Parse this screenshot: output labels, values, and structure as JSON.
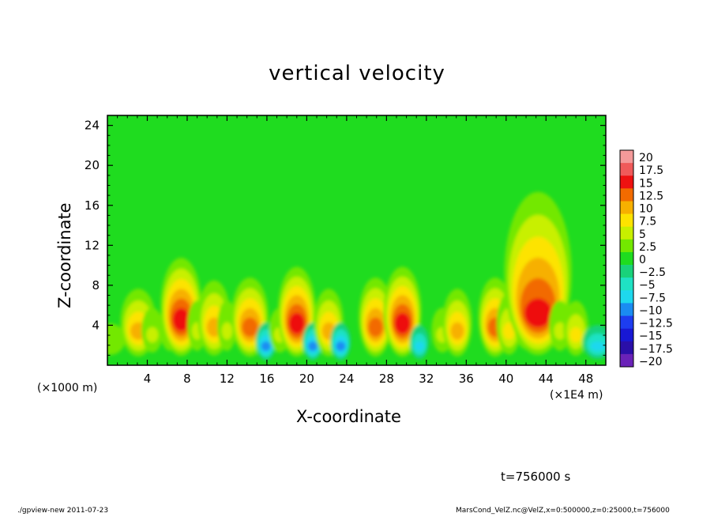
{
  "chart_data": {
    "type": "heatmap",
    "title": "vertical velocity",
    "xlabel": "X-coordinate",
    "ylabel": "Z-coordinate",
    "x_unit_left": "(×1000 m)",
    "x_unit_right": "(×1E4 m)",
    "xlim": [
      0,
      50
    ],
    "ylim": [
      0,
      25
    ],
    "x_ticks": [
      4,
      8,
      12,
      16,
      20,
      24,
      28,
      32,
      36,
      40,
      44,
      48
    ],
    "y_ticks": [
      4,
      8,
      12,
      16,
      20,
      24
    ],
    "background_value": 0,
    "colorbar": {
      "levels": [
        "20",
        "17.5",
        "15",
        "12.5",
        "10",
        "7.5",
        "5",
        "2.5",
        "0",
        "−2.5",
        "−5",
        "−7.5",
        "−10",
        "−12.5",
        "−15",
        "−17.5",
        "−20"
      ],
      "colors": [
        "#f49a9a",
        "#f05a5a",
        "#ee1111",
        "#f26b00",
        "#f7b000",
        "#fde300",
        "#c8f000",
        "#73e800",
        "#1fdc1f",
        "#19d27a",
        "#1fe2c4",
        "#1ed8ee",
        "#1a8cf2",
        "#1d3df0",
        "#1818d4",
        "#2a0fa8",
        "#6a22b8"
      ]
    },
    "features": [
      {
        "x": 0.3,
        "peak": 4.5,
        "top": 6,
        "width": 0.6
      },
      {
        "x": 3.1,
        "peak": 10,
        "top": 9,
        "width": 0.55
      },
      {
        "x": 4.5,
        "peak": 5,
        "top": 8,
        "width": 0.4
      },
      {
        "x": 6.3,
        "peak": 5,
        "top": 9,
        "width": 0.4
      },
      {
        "x": 7.4,
        "peak": 15,
        "top": 12,
        "width": 0.6
      },
      {
        "x": 9.0,
        "peak": 5,
        "top": 9,
        "width": 0.35
      },
      {
        "x": 10.7,
        "peak": 10,
        "top": 10,
        "width": 0.5
      },
      {
        "x": 12.0,
        "peak": 5,
        "top": 9,
        "width": 0.35
      },
      {
        "x": 14.3,
        "peak": 12.5,
        "top": 10,
        "width": 0.55
      },
      {
        "x": 15.9,
        "peak": -10,
        "top": 5,
        "width": 0.3
      },
      {
        "x": 17.3,
        "peak": 5,
        "top": 8,
        "width": 0.4
      },
      {
        "x": 19.0,
        "peak": 15,
        "top": 11,
        "width": 0.55
      },
      {
        "x": 20.6,
        "peak": -10,
        "top": 5,
        "width": 0.3
      },
      {
        "x": 22.2,
        "peak": 10,
        "top": 9,
        "width": 0.45
      },
      {
        "x": 23.4,
        "peak": -10,
        "top": 5,
        "width": 0.3
      },
      {
        "x": 26.9,
        "peak": 12.5,
        "top": 10,
        "width": 0.5
      },
      {
        "x": 29.6,
        "peak": 15,
        "top": 11,
        "width": 0.55
      },
      {
        "x": 31.3,
        "peak": -7.5,
        "top": 5,
        "width": 0.3
      },
      {
        "x": 33.6,
        "peak": 5,
        "top": 8,
        "width": 0.4
      },
      {
        "x": 35.1,
        "peak": 10,
        "top": 9,
        "width": 0.45
      },
      {
        "x": 38.9,
        "peak": 12.5,
        "top": 10,
        "width": 0.5
      },
      {
        "x": 40.3,
        "peak": 7.5,
        "top": 9,
        "width": 0.4
      },
      {
        "x": 42.0,
        "peak": 5,
        "top": 10,
        "width": 0.45
      },
      {
        "x": 43.2,
        "peak": 15,
        "top": 20,
        "width": 1.0
      },
      {
        "x": 45.4,
        "peak": 5,
        "top": 9,
        "width": 0.4
      },
      {
        "x": 47.0,
        "peak": 7.5,
        "top": 8,
        "width": 0.4
      },
      {
        "x": 49.2,
        "peak": -7.5,
        "top": 5,
        "width": 0.5
      }
    ]
  },
  "annotations": {
    "time": "t=756000 s",
    "footer_left": "./gpview-new   2011-07-23",
    "footer_right": "MarsCond_VelZ.nc@VelZ,x=0:500000,z=0:25000,t=756000"
  }
}
